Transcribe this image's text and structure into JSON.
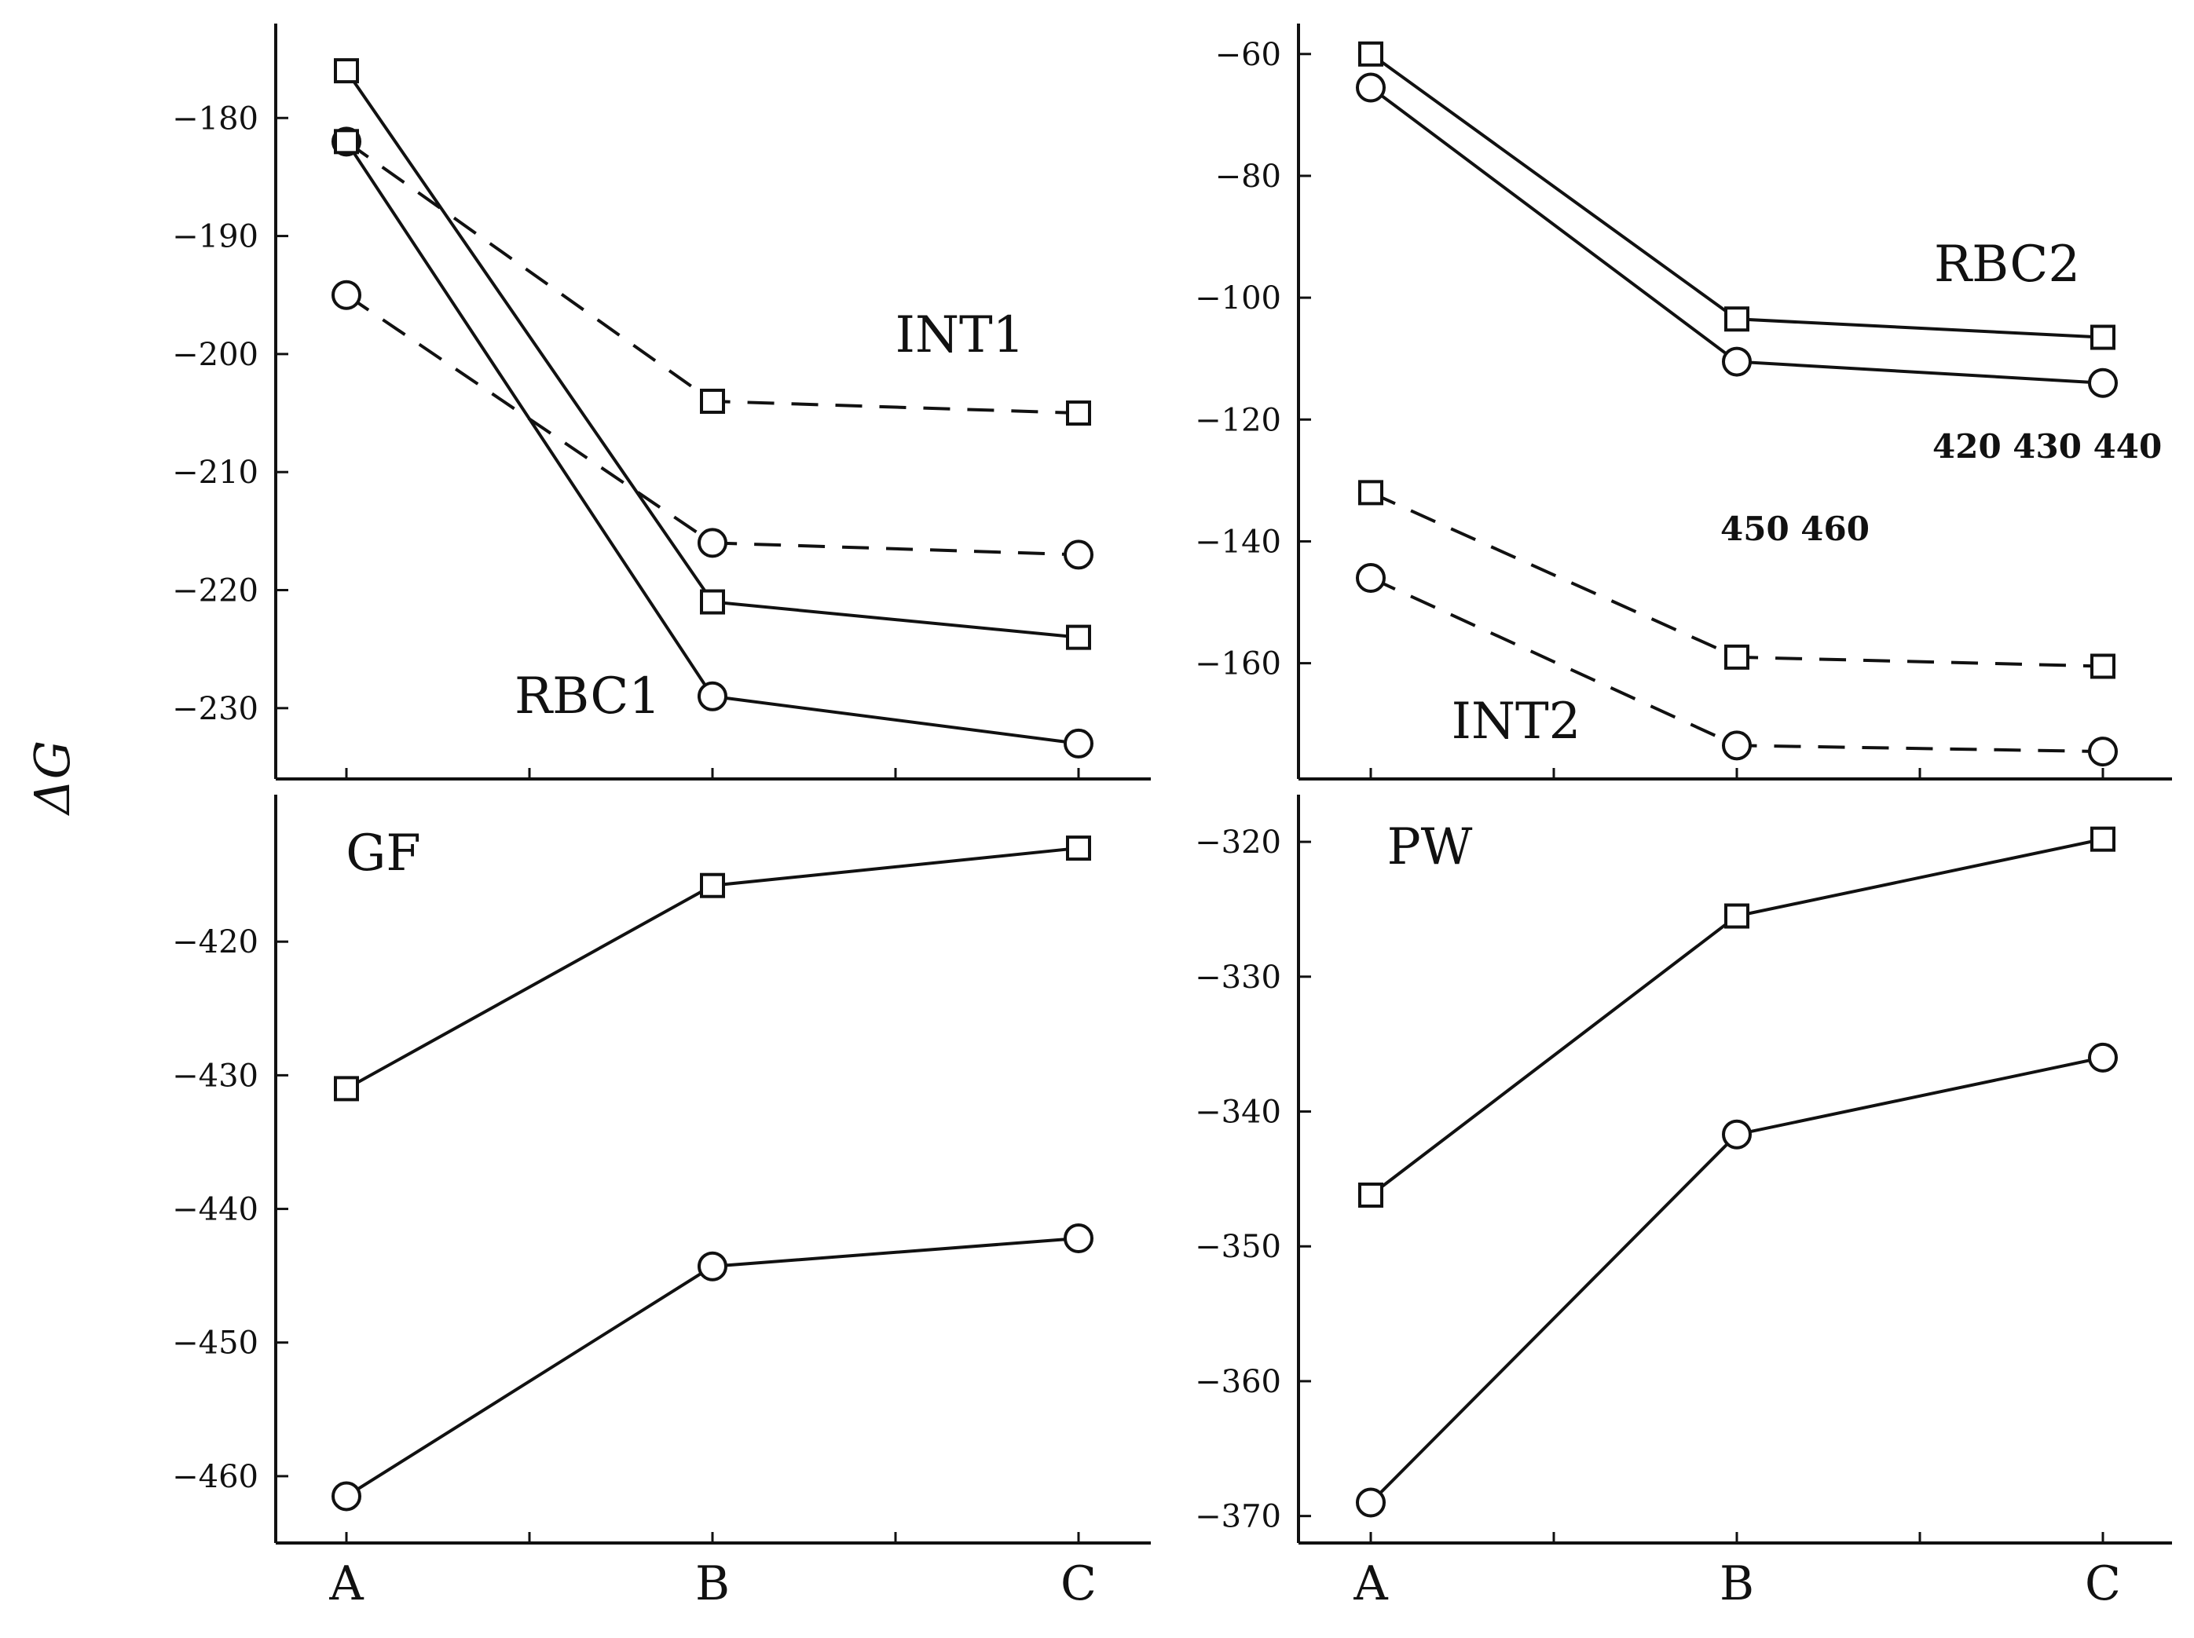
{
  "figure": {
    "ylabel": "ΔG",
    "annotations": [
      "420 430 440",
      "450 460"
    ]
  },
  "chart_data": [
    {
      "type": "line",
      "id": "top-left",
      "categories": [
        "A",
        "B",
        "C"
      ],
      "ylim": [
        -236,
        -172
      ],
      "yticks": [
        -180,
        -190,
        -200,
        -210,
        -220,
        -230
      ],
      "ytick_labels": [
        "−180",
        "−190",
        "−200",
        "−210",
        "−220",
        "−230"
      ],
      "labels": [
        "INT1",
        "RBC1"
      ],
      "series": [
        {
          "name": "RBC1 square",
          "style": "solid",
          "marker": "square",
          "values": [
            -176,
            -221,
            -224
          ]
        },
        {
          "name": "RBC1 circle",
          "style": "solid",
          "marker": "circle",
          "values": [
            -182,
            -229,
            -233
          ]
        },
        {
          "name": "INT1 square",
          "style": "dashed",
          "marker": "square",
          "values": [
            -182,
            -204,
            -205
          ]
        },
        {
          "name": "INT1 circle",
          "style": "dashed",
          "marker": "circle",
          "values": [
            -195,
            -216,
            -217
          ]
        }
      ]
    },
    {
      "type": "line",
      "id": "top-right",
      "categories": [
        "A",
        "B",
        "C"
      ],
      "ylim": [
        -179,
        -55
      ],
      "yticks": [
        -60,
        -80,
        -100,
        -120,
        -140,
        -160
      ],
      "ytick_labels": [
        "−60",
        "−80",
        "−100",
        "−120",
        "−140",
        "−160"
      ],
      "labels": [
        "RBC2",
        "INT2"
      ],
      "series": [
        {
          "name": "RBC2 square",
          "style": "solid",
          "marker": "square",
          "values": [
            -60,
            -103.5,
            -106.5
          ]
        },
        {
          "name": "RBC2 circle",
          "style": "solid",
          "marker": "circle",
          "values": [
            -65.5,
            -110.5,
            -114
          ]
        },
        {
          "name": "INT2 square",
          "style": "dashed",
          "marker": "square",
          "values": [
            -132,
            -159,
            -160.5
          ]
        },
        {
          "name": "INT2 circle",
          "style": "dashed",
          "marker": "circle",
          "values": [
            -146,
            -173.5,
            -174.5
          ]
        }
      ]
    },
    {
      "type": "line",
      "id": "bottom-left",
      "categories": [
        "A",
        "B",
        "C"
      ],
      "ylim": [
        -465,
        -409
      ],
      "yticks": [
        -420,
        -430,
        -440,
        -450,
        -460
      ],
      "ytick_labels": [
        "−420",
        "−430",
        "−440",
        "−450",
        "−460"
      ],
      "labels": [
        "GF"
      ],
      "series": [
        {
          "name": "GF square",
          "style": "solid",
          "marker": "square",
          "values": [
            -431,
            -415.8,
            -413
          ]
        },
        {
          "name": "GF circle",
          "style": "solid",
          "marker": "circle",
          "values": [
            -461.5,
            -444.3,
            -442.2
          ]
        }
      ]
    },
    {
      "type": "line",
      "id": "bottom-right",
      "categories": [
        "A",
        "B",
        "C"
      ],
      "ylim": [
        -372,
        -316.5
      ],
      "yticks": [
        -320,
        -330,
        -340,
        -350,
        -360,
        -370
      ],
      "ytick_labels": [
        "−320",
        "−330",
        "−340",
        "−350",
        "−360",
        "−370"
      ],
      "labels": [
        "PW"
      ],
      "series": [
        {
          "name": "PW square",
          "style": "solid",
          "marker": "square",
          "values": [
            -346.2,
            -325.5,
            -319.8
          ]
        },
        {
          "name": "PW circle",
          "style": "solid",
          "marker": "circle",
          "values": [
            -369,
            -341.7,
            -336
          ]
        }
      ]
    }
  ]
}
